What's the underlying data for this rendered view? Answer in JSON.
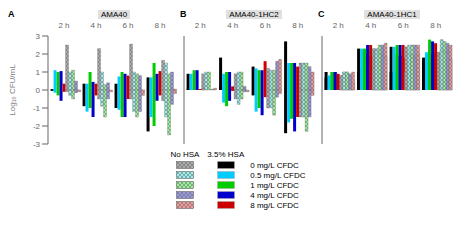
{
  "chart_data": [
    {
      "type": "bar",
      "title": "AMA40",
      "annotations": [
        "A"
      ],
      "ylabel": "Log₁₀ CFU/mL",
      "categories": [
        "2 h",
        "4 h",
        "6 h",
        "8 h"
      ],
      "ylim": [
        -3,
        3
      ],
      "yticks": [
        -3,
        -2,
        -1,
        0,
        1,
        2,
        3
      ],
      "tick_labels": "y",
      "grid": false,
      "series": [
        {
          "name": "0 mg/L CFDC",
          "group": "3.5% HSA",
          "color": "#000000",
          "values": [
            0.05,
            0.35,
            0.35,
            0.7
          ],
          "overlay_values": [
            -0.05,
            -0.9,
            -1.0,
            -2.3
          ]
        },
        {
          "name": "0.5 mg/L CFDC",
          "group": "3.5% HSA",
          "color": "#00ccff",
          "values": [
            1.1,
            0.35,
            0.75,
            0.7
          ],
          "overlay_values": [
            -0.15,
            -1.2,
            -1.1,
            -1.5
          ]
        },
        {
          "name": "1 mg/L CFDC",
          "group": "3.5% HSA",
          "color": "#00cc00",
          "values": [
            1.0,
            1.0,
            1.0,
            1.5
          ],
          "overlay_values": [
            -0.3,
            -1.0,
            -1.5,
            -2.0
          ]
        },
        {
          "name": "4 mg/L CFDC",
          "group": "3.5% HSA",
          "color": "#0000cc",
          "values": [
            1.05,
            0.45,
            0.9,
            0.9
          ],
          "overlay_values": [
            -0.6,
            -1.5,
            -1.5,
            -0.6
          ]
        },
        {
          "name": "8 mg/L CFDC",
          "group": "3.5% HSA",
          "color": "#cc0000",
          "values": [
            0.35,
            0.35,
            0.8,
            1.05
          ],
          "overlay_values": [
            -0.1,
            -0.3,
            -0.5,
            -0.3
          ]
        },
        {
          "name": "0 mg/L CFDC",
          "group": "No HSA",
          "color": "#aaaaaa",
          "values": [
            2.5,
            2.3,
            2.55,
            1.65
          ],
          "overlay_values": [
            -0.1,
            -0.5,
            -0.5,
            -0.6
          ]
        },
        {
          "name": "0.5 mg/L CFDC",
          "group": "No HSA",
          "color": "#99eeee",
          "values": [
            1.0,
            1.0,
            1.0,
            1.5
          ],
          "overlay_values": [
            -0.3,
            -0.9,
            -1.2,
            -1.5
          ]
        },
        {
          "name": "1 mg/L CFDC",
          "group": "No HSA",
          "color": "#99ee99",
          "values": [
            1.1,
            0.3,
            0.9,
            0.9
          ],
          "overlay_values": [
            -0.5,
            -1.5,
            -1.5,
            -2.5
          ]
        },
        {
          "name": "4 mg/L CFDC",
          "group": "No HSA",
          "color": "#9999dd",
          "values": [
            0.5,
            0.4,
            0.8,
            1.0
          ],
          "overlay_values": [
            -0.15,
            -0.5,
            -1.2,
            -0.8
          ]
        },
        {
          "name": "8 mg/L CFDC",
          "group": "No HSA",
          "color": "#ee9999",
          "values": [
            -0.05,
            0.0,
            -0.05,
            0.05
          ],
          "overlay_values": [
            -0.1,
            -0.1,
            -0.3,
            -0.2
          ]
        }
      ]
    },
    {
      "type": "bar",
      "title": "AMA40-1HC2",
      "annotations": [
        "B"
      ],
      "categories": [
        "2 h",
        "4 h",
        "6 h",
        "8 h"
      ],
      "ylim": [
        -3,
        3
      ],
      "yticks": [
        -3,
        -2,
        -1,
        0,
        1,
        2,
        3
      ],
      "tick_labels": false,
      "grid": false,
      "series": [
        {
          "name": "0 mg/L CFDC",
          "group": "3.5% HSA",
          "color": "#000000",
          "values": [
            0.9,
            1.8,
            1.3,
            2.7
          ],
          "overlay_values": [
            0.05,
            0.2,
            -0.3,
            -2.4
          ]
        },
        {
          "name": "0.5 mg/L CFDC",
          "group": "3.5% HSA",
          "color": "#00ccff",
          "values": [
            0.9,
            0.9,
            1.2,
            1.5
          ],
          "overlay_values": [
            0.1,
            -0.7,
            -1.2,
            -1.8
          ]
        },
        {
          "name": "1 mg/L CFDC",
          "group": "3.5% HSA",
          "color": "#00cc00",
          "values": [
            1.1,
            1.0,
            1.1,
            1.5
          ],
          "overlay_values": [
            0.0,
            -0.9,
            -1.0,
            -1.6
          ]
        },
        {
          "name": "4 mg/L CFDC",
          "group": "3.5% HSA",
          "color": "#0000cc",
          "values": [
            1.1,
            1.0,
            1.1,
            1.5
          ],
          "overlay_values": [
            0.0,
            -0.6,
            -1.4,
            -2.3
          ]
        },
        {
          "name": "8 mg/L CFDC",
          "group": "3.5% HSA",
          "color": "#cc0000",
          "values": [
            0.05,
            0.2,
            1.6,
            1.3
          ],
          "overlay_values": [
            0.05,
            -0.05,
            -0.4,
            -1.5
          ]
        },
        {
          "name": "0 mg/L CFDC",
          "group": "No HSA",
          "color": "#aaaaaa",
          "values": [
            0.9,
            0.9,
            1.2,
            1.5
          ],
          "overlay_values": [
            0.1,
            -0.5,
            -1.0,
            -1.5
          ]
        },
        {
          "name": "0.5 mg/L CFDC",
          "group": "No HSA",
          "color": "#99eeee",
          "values": [
            1.0,
            1.0,
            1.1,
            1.5
          ],
          "overlay_values": [
            0.0,
            -0.8,
            -1.0,
            -1.5
          ]
        },
        {
          "name": "1 mg/L CFDC",
          "group": "No HSA",
          "color": "#99ee99",
          "values": [
            1.0,
            1.0,
            1.1,
            1.5
          ],
          "overlay_values": [
            0.0,
            -0.5,
            -1.4,
            -2.3
          ]
        },
        {
          "name": "4 mg/L CFDC",
          "group": "No HSA",
          "color": "#9999dd",
          "values": [
            0.0,
            0.2,
            1.6,
            1.3
          ],
          "overlay_values": [
            0.05,
            -0.1,
            -0.4,
            -1.5
          ]
        },
        {
          "name": "8 mg/L CFDC",
          "group": "No HSA",
          "color": "#ee9999",
          "values": [
            0.1,
            0.0,
            1.7,
            1.0
          ],
          "overlay_values": [
            0.0,
            -0.1,
            -0.2,
            -0.3
          ]
        }
      ]
    },
    {
      "type": "bar",
      "title": "AMA40-1HC1",
      "annotations": [
        "C"
      ],
      "categories": [
        "2 h",
        "4 h",
        "6 h",
        "8 h"
      ],
      "ylim": [
        -3,
        3
      ],
      "yticks": [
        -3,
        -2,
        -1,
        0,
        1,
        2,
        3
      ],
      "tick_labels": false,
      "grid": false,
      "series": [
        {
          "name": "0 mg/L CFDC",
          "group": "3.5% HSA",
          "color": "#000000",
          "values": [
            0.7,
            2.3,
            2.4,
            1.6
          ],
          "overlay_values": [
            1.0,
            1.0,
            1.0,
            1.8
          ]
        },
        {
          "name": "0.5 mg/L CFDC",
          "group": "3.5% HSA",
          "color": "#00ccff",
          "values": [
            0.8,
            2.3,
            2.4,
            2.1
          ],
          "overlay_values": [
            0.8,
            1.2,
            1.0,
            2.0
          ]
        },
        {
          "name": "1 mg/L CFDC",
          "group": "3.5% HSA",
          "color": "#00cc00",
          "values": [
            1.0,
            2.3,
            2.5,
            2.8
          ],
          "overlay_values": [
            1.0,
            2.2,
            2.0,
            2.2
          ]
        },
        {
          "name": "4 mg/L CFDC",
          "group": "3.5% HSA",
          "color": "#0000cc",
          "values": [
            1.0,
            2.5,
            2.5,
            2.7
          ],
          "overlay_values": [
            1.0,
            2.0,
            1.9,
            2.0
          ]
        },
        {
          "name": "8 mg/L CFDC",
          "group": "3.5% HSA",
          "color": "#cc0000",
          "values": [
            0.8,
            2.5,
            2.5,
            2.6
          ],
          "overlay_values": [
            0.9,
            1.9,
            1.8,
            2.1
          ]
        },
        {
          "name": "0 mg/L CFDC",
          "group": "No HSA",
          "color": "#aaaaaa",
          "values": [
            0.8,
            2.3,
            2.4,
            2.1
          ],
          "overlay_values": [
            0.8,
            1.2,
            1.0,
            2.0
          ]
        },
        {
          "name": "0.5 mg/L CFDC",
          "group": "No HSA",
          "color": "#99eeee",
          "values": [
            1.0,
            2.3,
            2.5,
            2.8
          ],
          "overlay_values": [
            1.0,
            2.2,
            2.0,
            2.2
          ]
        },
        {
          "name": "1 mg/L CFDC",
          "group": "No HSA",
          "color": "#99ee99",
          "values": [
            1.0,
            2.5,
            2.5,
            2.7
          ],
          "overlay_values": [
            1.0,
            2.0,
            1.9,
            2.1
          ]
        },
        {
          "name": "4 mg/L CFDC",
          "group": "No HSA",
          "color": "#9999dd",
          "values": [
            0.8,
            2.5,
            2.5,
            2.6
          ],
          "overlay_values": [
            0.9,
            1.9,
            1.8,
            2.1
          ]
        },
        {
          "name": "8 mg/L CFDC",
          "group": "No HSA",
          "color": "#ee9999",
          "values": [
            0.5,
            2.6,
            2.5,
            2.5
          ],
          "overlay_values": [
            1.0,
            1.8,
            2.0,
            1.7
          ]
        }
      ]
    }
  ]
}
